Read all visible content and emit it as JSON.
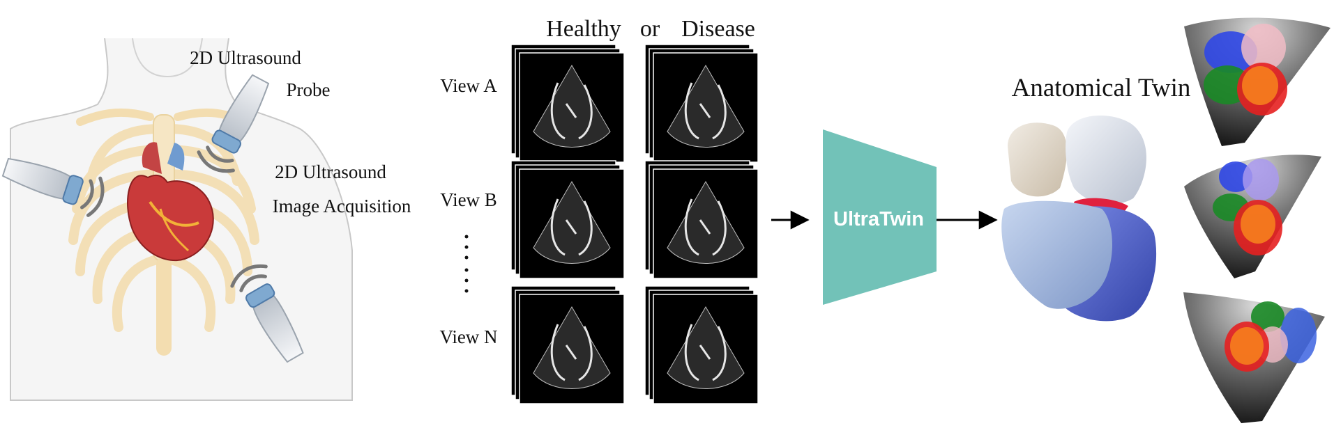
{
  "labels": {
    "probe": [
      "2D Ultrasound",
      "Probe"
    ],
    "acquisition": [
      "2D Ultrasound",
      "Image Acquisition"
    ],
    "healthy": "Healthy",
    "or": "or",
    "disease": "Disease",
    "view_a": "View A",
    "view_b": "View B",
    "view_n": "View N",
    "model": "UltraTwin",
    "output": "Anatomical Twin"
  },
  "colors": {
    "model_block": "#72c2b8",
    "heart_red": "#c93a3a",
    "rib": "#f3ddb0",
    "probe_body": "#dfe3e8",
    "probe_tip": "#7fa9d0",
    "twin_cream": "#e8dfd2",
    "twin_light": "#dfe4ee",
    "twin_lightblue": "#a9bedf",
    "twin_blue": "#5b6fd4",
    "twin_red": "#e0213f"
  },
  "icons": [
    "torso-illustration",
    "heart-icon",
    "ultrasound-probe-icon",
    "arrow-icon",
    "heart-3d-model",
    "segmentation-slice"
  ]
}
